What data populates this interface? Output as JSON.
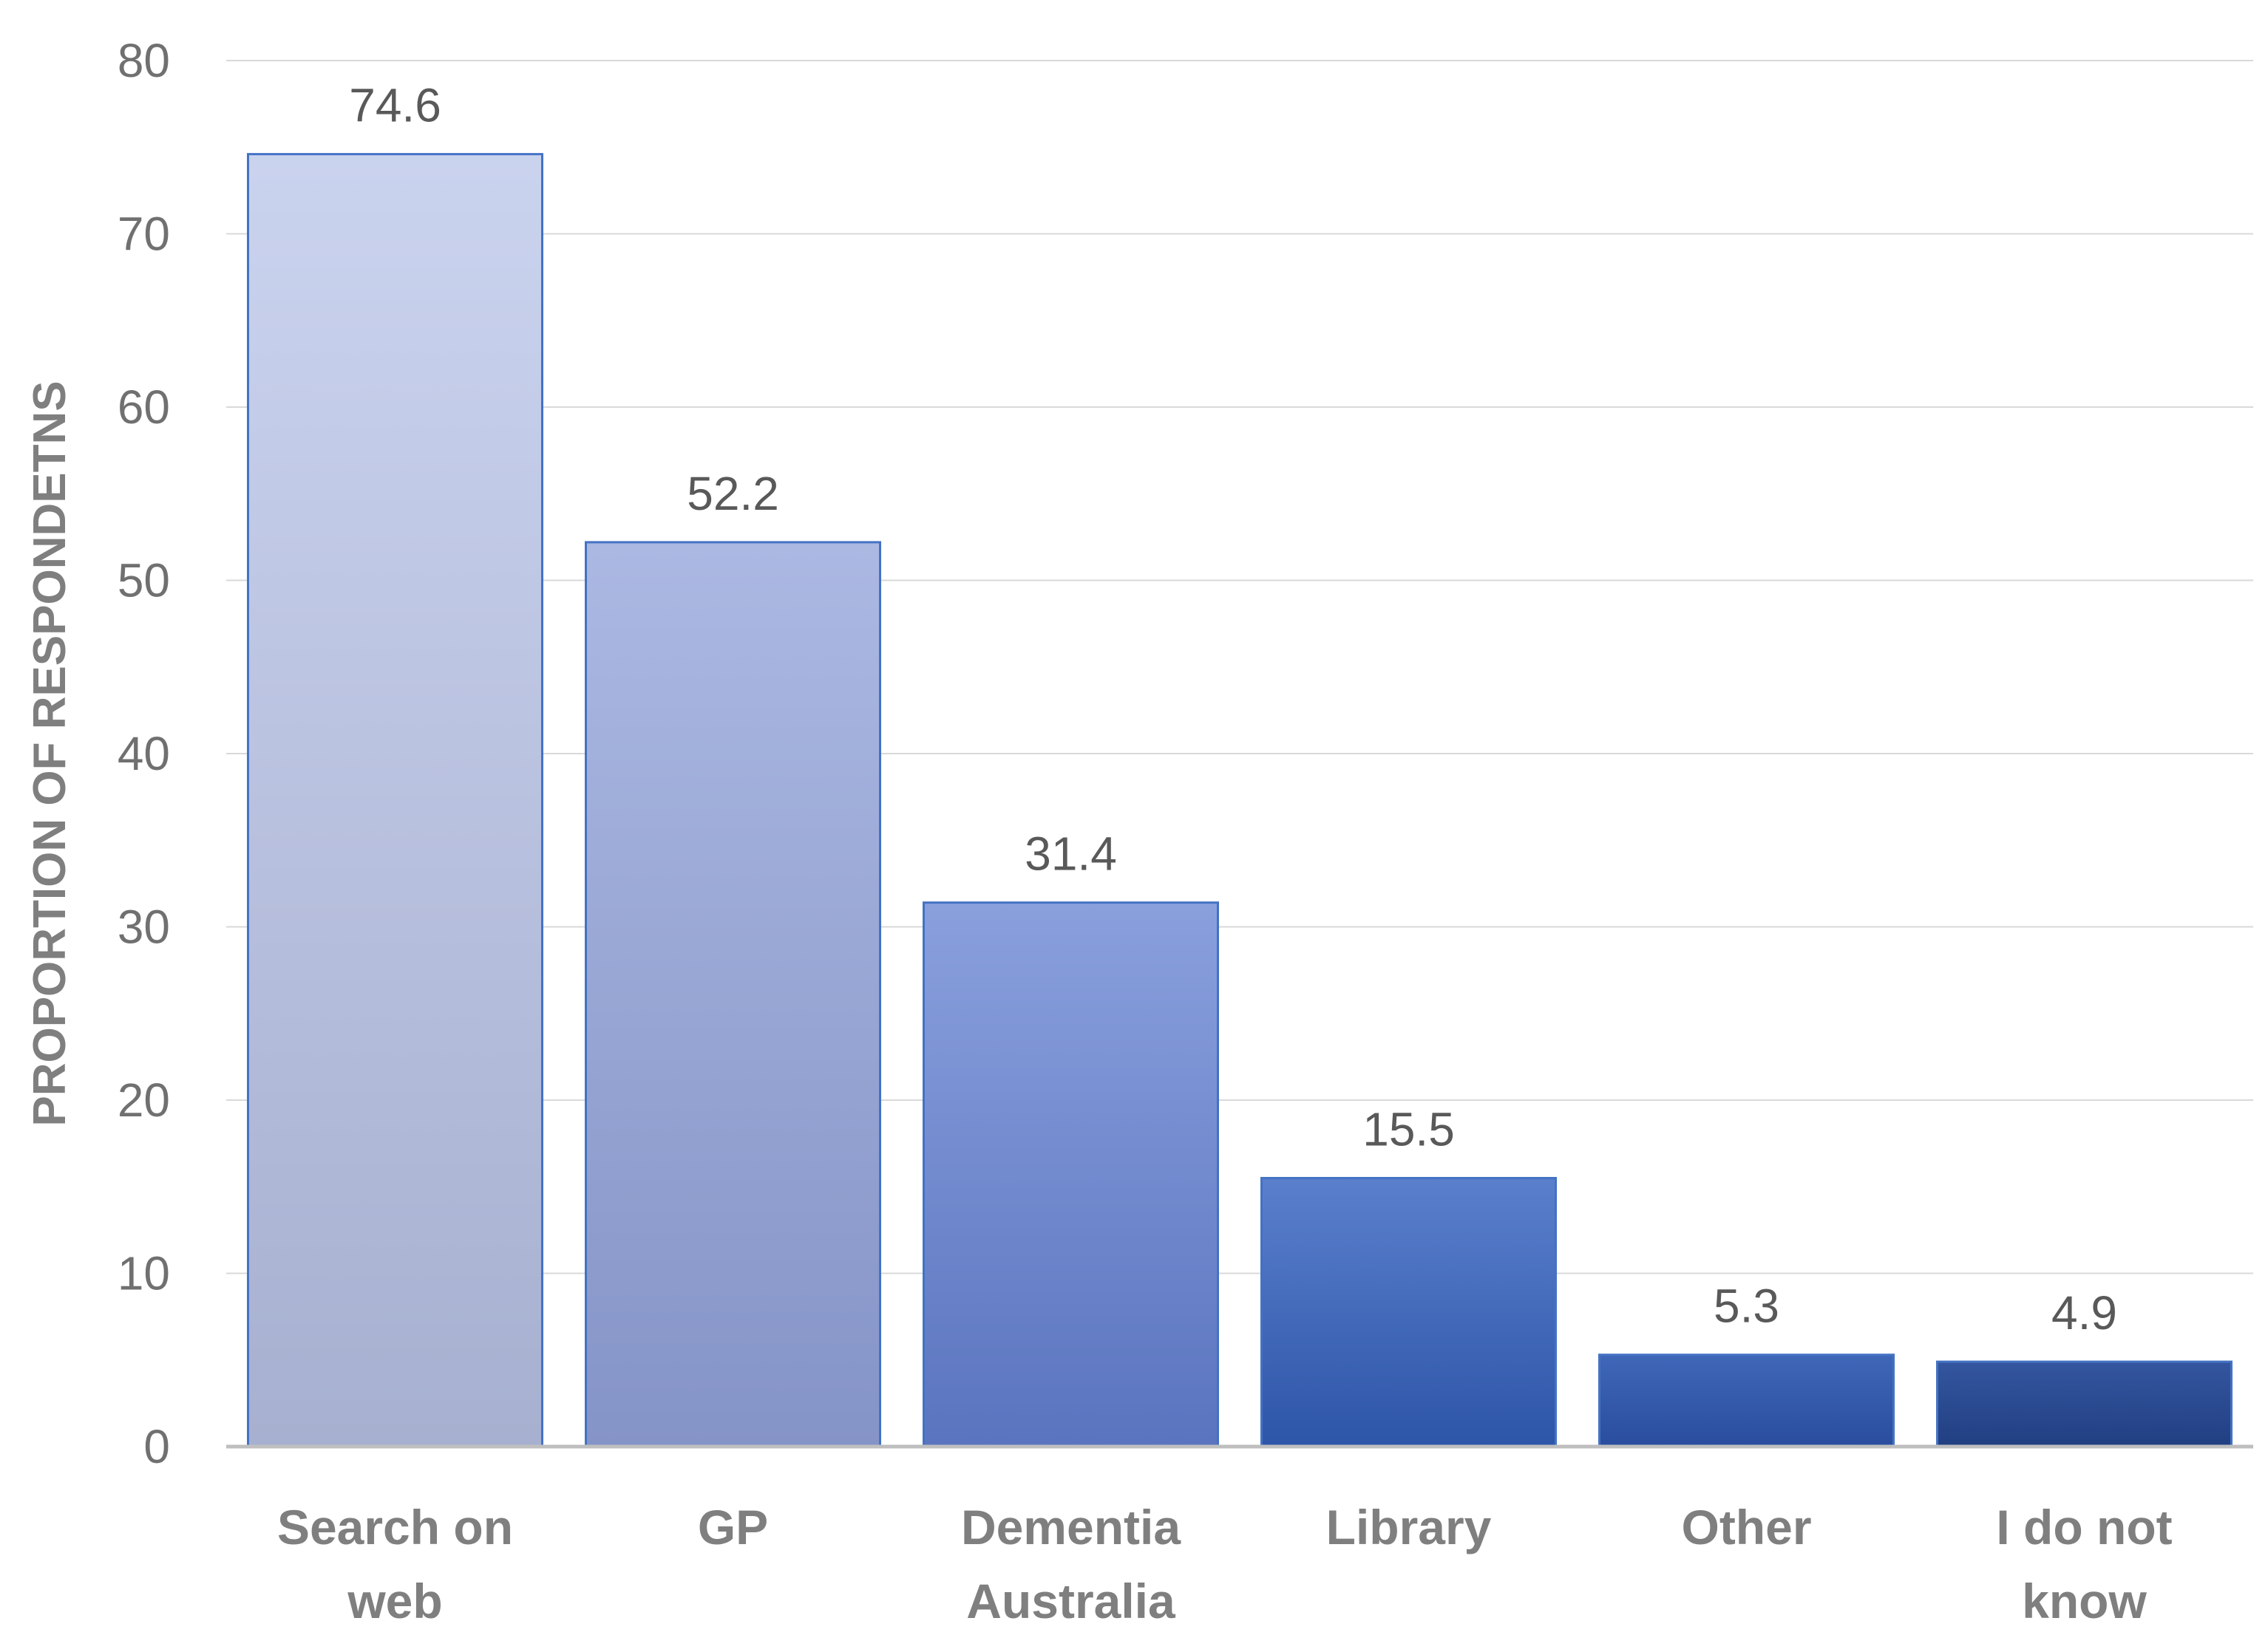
{
  "chart_data": {
    "type": "bar",
    "title": "",
    "xlabel": "",
    "ylabel": "PROPORTION OF RESPONDETNS",
    "ylim": [
      0,
      80
    ],
    "yticks": [
      0,
      10,
      20,
      30,
      40,
      50,
      60,
      70,
      80
    ],
    "grid": true,
    "legend": "none",
    "categories": [
      [
        "Search on",
        "web"
      ],
      [
        "GP"
      ],
      [
        "Dementia",
        "Australia"
      ],
      [
        "Library"
      ],
      [
        "Other"
      ],
      [
        "I do not",
        "know"
      ]
    ],
    "values": [
      74.6,
      52.2,
      31.4,
      15.5,
      5.3,
      4.9
    ],
    "data_labels": [
      "74.6",
      "52.2",
      "31.4",
      "15.5",
      "5.3",
      "4.9"
    ],
    "colors": {
      "bar_outline": "#4472c4",
      "bar_gradients": [
        [
          "#cad3ee",
          "#a7b0d0"
        ],
        [
          "#abb8e2",
          "#8594c7"
        ],
        [
          "#8aa0dd",
          "#5a74bf"
        ],
        [
          "#5a80cc",
          "#2d55a8"
        ],
        [
          "#3f67b8",
          "#2a4d9e"
        ],
        [
          "#34569f",
          "#213f82"
        ]
      ]
    }
  }
}
